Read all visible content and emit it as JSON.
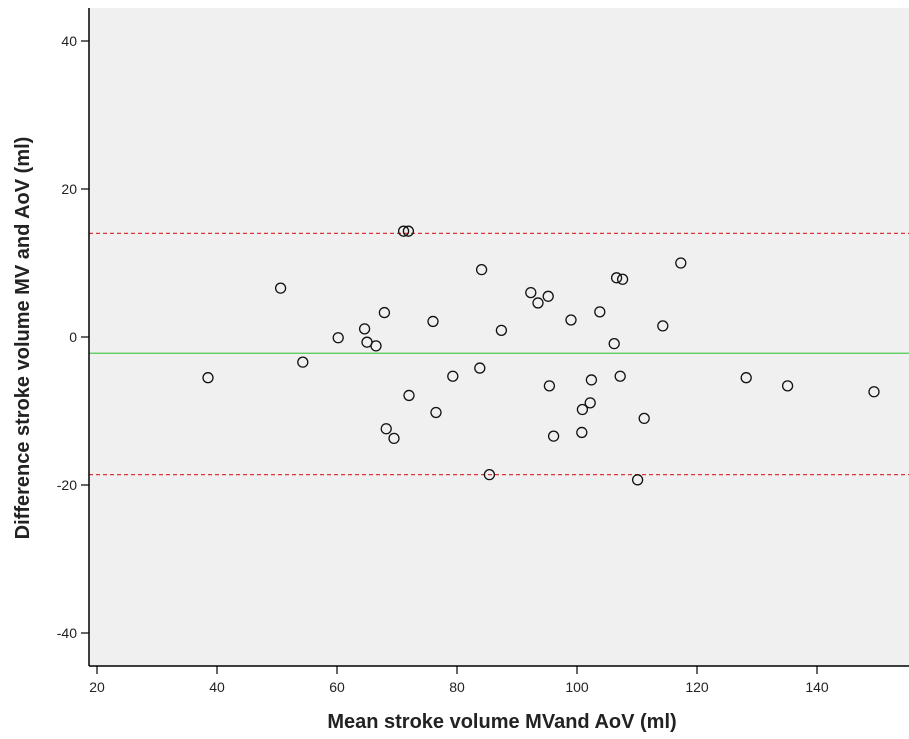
{
  "chart_data": {
    "type": "scatter",
    "title": "",
    "xlabel": "Mean stroke volume MVand AoV (ml)",
    "ylabel": "Difference stroke volume MV and AoV (ml)",
    "xlim": [
      18,
      156
    ],
    "ylim": [
      -45,
      44.5
    ],
    "xticks": [
      20,
      40,
      60,
      80,
      100,
      120,
      140
    ],
    "yticks": [
      -40,
      -20,
      0,
      20,
      40
    ],
    "grid": false,
    "background": "#f0f0f0",
    "marker": "open-circle",
    "reference_lines": [
      {
        "role": "upper-limit",
        "y": 14,
        "color": "#d9383a",
        "style": "dashed"
      },
      {
        "role": "mean",
        "y": -2.2,
        "color": "#4fc94f",
        "style": "solid"
      },
      {
        "role": "lower-limit",
        "y": -18.6,
        "color": "#d9383a",
        "style": "dashed"
      }
    ],
    "points": [
      {
        "x": 38.5,
        "y": -5.5
      },
      {
        "x": 50.6,
        "y": 6.6
      },
      {
        "x": 54.3,
        "y": -3.4
      },
      {
        "x": 60.2,
        "y": -0.1
      },
      {
        "x": 64.6,
        "y": 1.1
      },
      {
        "x": 65.0,
        "y": -0.7
      },
      {
        "x": 66.5,
        "y": -1.2
      },
      {
        "x": 67.9,
        "y": 3.3
      },
      {
        "x": 68.2,
        "y": -12.4
      },
      {
        "x": 69.5,
        "y": -13.7
      },
      {
        "x": 71.1,
        "y": 14.3
      },
      {
        "x": 71.9,
        "y": 14.3
      },
      {
        "x": 72.0,
        "y": -7.9
      },
      {
        "x": 76.0,
        "y": 2.1
      },
      {
        "x": 76.5,
        "y": -10.2
      },
      {
        "x": 79.3,
        "y": -5.3
      },
      {
        "x": 83.8,
        "y": -4.2
      },
      {
        "x": 84.1,
        "y": 9.1
      },
      {
        "x": 85.4,
        "y": -18.6
      },
      {
        "x": 87.4,
        "y": 0.9
      },
      {
        "x": 92.3,
        "y": 6.0
      },
      {
        "x": 93.5,
        "y": 4.6
      },
      {
        "x": 95.2,
        "y": 5.5
      },
      {
        "x": 95.4,
        "y": -6.6
      },
      {
        "x": 96.1,
        "y": -13.4
      },
      {
        "x": 99.0,
        "y": 2.3
      },
      {
        "x": 100.8,
        "y": -12.9
      },
      {
        "x": 100.9,
        "y": -9.8
      },
      {
        "x": 102.2,
        "y": -8.9
      },
      {
        "x": 102.4,
        "y": -5.8
      },
      {
        "x": 103.8,
        "y": 3.4
      },
      {
        "x": 106.2,
        "y": -0.9
      },
      {
        "x": 106.6,
        "y": 8.0
      },
      {
        "x": 107.2,
        "y": -5.3
      },
      {
        "x": 107.6,
        "y": 7.8
      },
      {
        "x": 110.1,
        "y": -19.3
      },
      {
        "x": 111.2,
        "y": -11.0
      },
      {
        "x": 114.3,
        "y": 1.5
      },
      {
        "x": 117.3,
        "y": 10.0
      },
      {
        "x": 128.2,
        "y": -5.5
      },
      {
        "x": 135.1,
        "y": -6.6
      },
      {
        "x": 149.5,
        "y": -7.4
      }
    ]
  }
}
